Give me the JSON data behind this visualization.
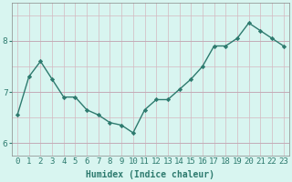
{
  "x": [
    0,
    1,
    2,
    3,
    4,
    5,
    6,
    7,
    8,
    9,
    10,
    11,
    12,
    13,
    14,
    15,
    16,
    17,
    18,
    19,
    20,
    21,
    22,
    23
  ],
  "y": [
    6.55,
    7.3,
    7.6,
    7.25,
    6.9,
    6.9,
    6.65,
    6.55,
    6.4,
    6.35,
    6.2,
    6.65,
    6.85,
    6.85,
    7.05,
    7.25,
    7.5,
    7.9,
    7.9,
    8.05,
    8.35,
    8.2,
    8.05,
    7.9
  ],
  "line_color": "#2d7a6e",
  "marker": "D",
  "marker_size": 2.2,
  "bg_color": "#d8f5f0",
  "grid_color_major": "#c8e8e4",
  "grid_color_minor": "#e0f4f0",
  "xlabel": "Humidex (Indice chaleur)",
  "ylim": [
    5.75,
    8.75
  ],
  "yticks": [
    6,
    7,
    8
  ],
  "title_color": "#2d7a6e",
  "xlabel_fontsize": 7,
  "tick_fontsize": 6.5,
  "line_width": 1.0
}
